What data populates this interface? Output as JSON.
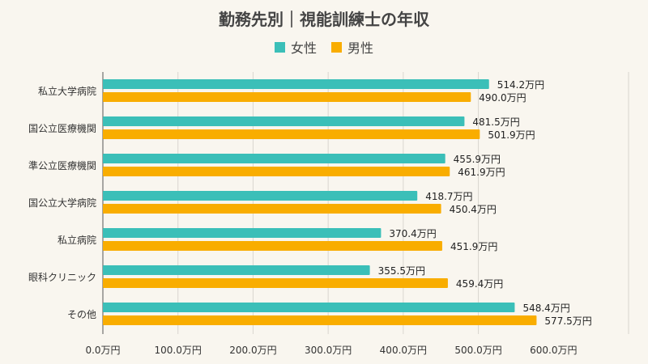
{
  "chart_data": {
    "type": "bar",
    "orientation": "horizontal",
    "title": "勤務先別｜視能訓練士の年収",
    "categories": [
      "私立大学病院",
      "国公立医療機関",
      "準公立医療機関",
      "国公立大学病院",
      "私立病院",
      "眼科クリニック",
      "その他"
    ],
    "series": [
      {
        "name": "女性",
        "color": "#3bbfb8",
        "values": [
          514.2,
          481.5,
          455.9,
          418.7,
          370.4,
          355.5,
          548.4
        ],
        "labels": [
          "514.2万円",
          "481.5万円",
          "455.9万円",
          "418.7万円",
          "370.4万円",
          "355.5万円",
          "548.4万円"
        ]
      },
      {
        "name": "男性",
        "color": "#f9ad00",
        "values": [
          490.0,
          501.9,
          461.9,
          450.4,
          451.9,
          459.4,
          577.5
        ],
        "labels": [
          "490.0万円",
          "501.9万円",
          "461.9万円",
          "450.4万円",
          "451.9万円",
          "459.4万円",
          "577.5万円"
        ]
      }
    ],
    "xlim": [
      0,
      700
    ],
    "xticks": [
      0,
      100,
      200,
      300,
      400,
      500,
      600
    ],
    "xtick_labels": [
      "0.0万円",
      "100.0万円",
      "200.0万円",
      "300.0万円",
      "400.0万円",
      "500.0万円",
      "600.0万円"
    ],
    "grid": true,
    "legend": "top-center"
  }
}
